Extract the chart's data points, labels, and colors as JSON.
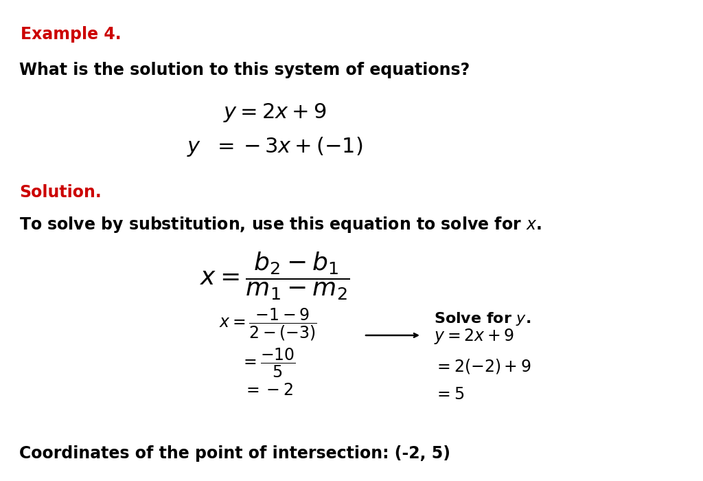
{
  "bg_color": "#FFFFFF",
  "red_color": "#CC0000",
  "black": "#000000",
  "figsize": [
    10.24,
    7.0
  ],
  "dpi": 100,
  "example_label": "Example 4.",
  "question": "What is the solution to this system of equations?",
  "solution_label": "Solution.",
  "instruction1": "To solve by substitution, use this equation to solve for ",
  "instruction_x": "x",
  "instruction2": ".",
  "coords_label": "Coordinates of the point of intersection: (-2, 5)"
}
